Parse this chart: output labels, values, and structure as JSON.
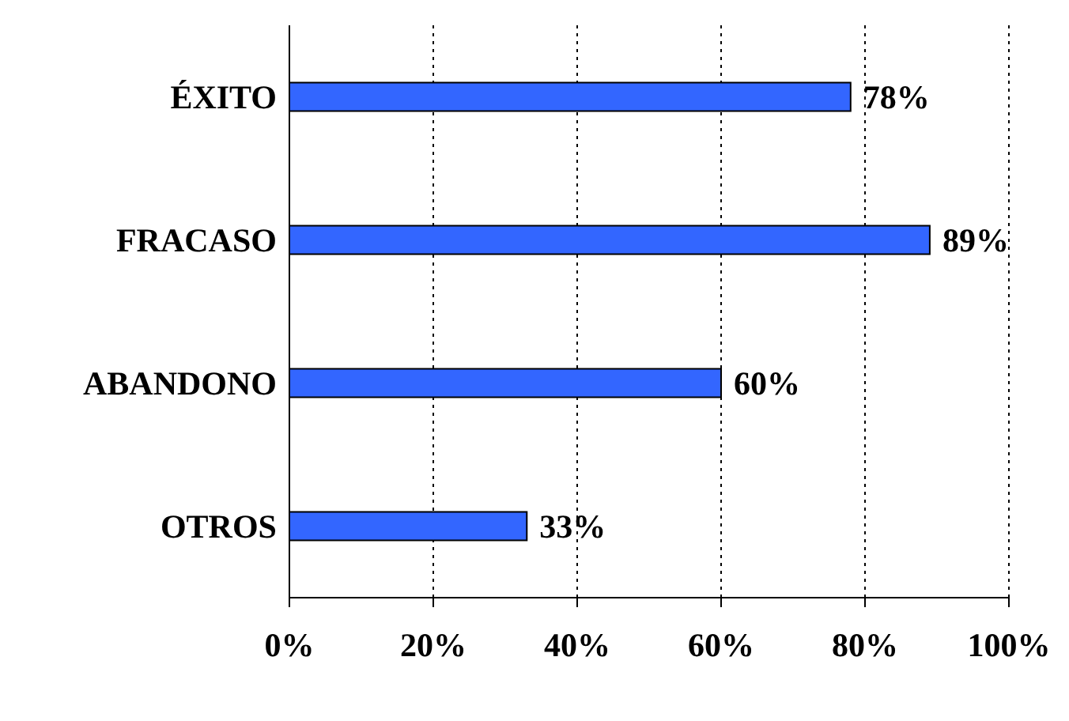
{
  "chart_data": {
    "type": "bar",
    "orientation": "horizontal",
    "categories": [
      "ÉXITO",
      "FRACASO",
      "ABANDONO",
      "OTROS"
    ],
    "values": [
      78,
      89,
      60,
      33
    ],
    "value_labels": [
      "78%",
      "89%",
      "60%",
      "33%"
    ],
    "color": "#3366ff",
    "xlim": [
      0,
      100
    ],
    "xticks": [
      {
        "value": 0,
        "label": "0%"
      },
      {
        "value": 20,
        "label": "20%"
      },
      {
        "value": 40,
        "label": "40%"
      },
      {
        "value": 60,
        "label": "60%"
      },
      {
        "value": 80,
        "label": "80%"
      },
      {
        "value": 100,
        "label": "100%"
      }
    ],
    "grid": "x",
    "legend": false
  }
}
